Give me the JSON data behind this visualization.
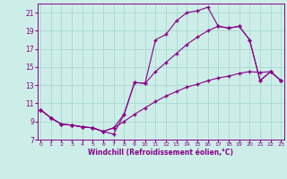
{
  "xlabel": "Windchill (Refroidissement éolien,°C)",
  "background_color": "#cdeee8",
  "grid_color": "#a8d8d0",
  "line_color": "#880088",
  "xlim_min": 0,
  "xlim_max": 23,
  "ylim_min": 7,
  "ylim_max": 22,
  "xticks": [
    0,
    1,
    2,
    3,
    4,
    5,
    6,
    7,
    8,
    9,
    10,
    11,
    12,
    13,
    14,
    15,
    16,
    17,
    18,
    19,
    20,
    21,
    22,
    23
  ],
  "yticks": [
    7,
    9,
    11,
    13,
    15,
    17,
    19,
    21
  ],
  "line1_x": [
    0,
    1,
    2,
    3,
    4,
    5,
    6,
    7,
    8,
    9,
    10,
    11,
    12,
    13,
    14,
    15,
    16,
    17,
    18,
    19,
    20,
    21,
    22,
    23
  ],
  "line1_y": [
    10.3,
    9.4,
    8.7,
    8.6,
    8.4,
    8.3,
    7.9,
    7.6,
    9.8,
    13.3,
    13.2,
    18.0,
    18.6,
    20.1,
    21.0,
    21.2,
    21.6,
    19.5,
    19.3,
    19.5,
    18.0,
    13.5,
    14.5,
    13.5
  ],
  "line2_x": [
    0,
    1,
    2,
    3,
    4,
    5,
    6,
    7,
    8,
    9,
    10,
    11,
    12,
    13,
    14,
    15,
    16,
    17,
    18,
    19,
    20,
    21,
    22,
    23
  ],
  "line2_y": [
    10.3,
    9.4,
    8.7,
    8.6,
    8.4,
    8.3,
    7.9,
    8.3,
    9.8,
    13.3,
    13.2,
    14.5,
    15.5,
    16.5,
    17.5,
    18.3,
    19.0,
    19.5,
    19.3,
    19.5,
    18.0,
    13.5,
    14.5,
    13.5
  ],
  "line3_x": [
    0,
    1,
    2,
    3,
    4,
    5,
    6,
    7,
    8,
    9,
    10,
    11,
    12,
    13,
    14,
    15,
    16,
    17,
    18,
    19,
    20,
    21,
    22,
    23
  ],
  "line3_y": [
    10.3,
    9.4,
    8.7,
    8.6,
    8.4,
    8.3,
    7.9,
    8.3,
    9.0,
    9.8,
    10.5,
    11.2,
    11.8,
    12.3,
    12.8,
    13.1,
    13.5,
    13.8,
    14.0,
    14.3,
    14.5,
    14.4,
    14.5,
    13.5
  ]
}
